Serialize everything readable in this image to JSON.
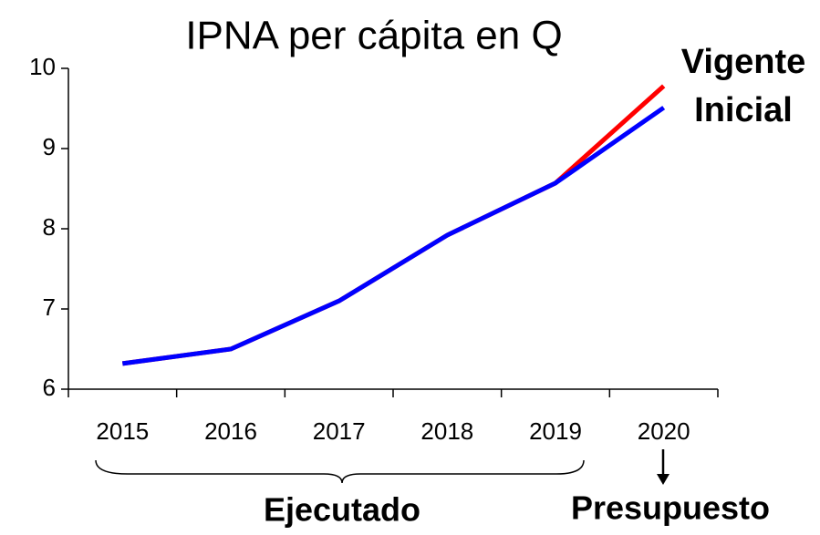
{
  "chart_data": {
    "type": "line",
    "title": "IPNA per cápita en Q",
    "categories": [
      "2015",
      "2016",
      "2017",
      "2018",
      "2019",
      "2020"
    ],
    "series": [
      {
        "name": "Vigente",
        "color": "#ff0000",
        "values": [
          6.32,
          6.5,
          7.1,
          7.92,
          8.57,
          9.78
        ]
      },
      {
        "name": "Inicial",
        "color": "#0000ff",
        "values": [
          6.32,
          6.5,
          7.1,
          7.92,
          8.57,
          9.51
        ]
      }
    ],
    "ylim": [
      6,
      10
    ],
    "yticks": [
      6,
      7,
      8,
      9,
      10
    ],
    "annotations": [
      "Ejecutado",
      "Presupuesto"
    ]
  }
}
